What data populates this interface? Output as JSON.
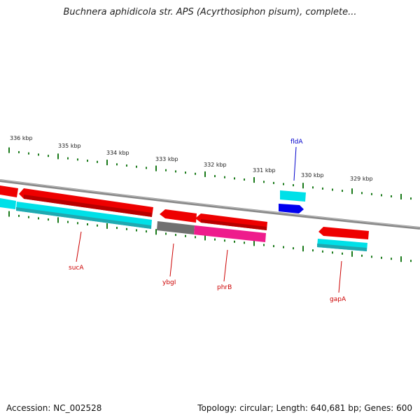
{
  "title": "Buchnera aphidicola str. APS (Acyrthosiphon pisum), complete...",
  "footer": {
    "accession": "Accession: NC_002528",
    "topology": "Topology: circular; Length: 640,681 bp; Genes: 600"
  },
  "colors": {
    "backbone": "#888888",
    "tick": "#1a7a1a",
    "cds": "#ee0000",
    "cds_dark": "#b80000",
    "rna_cyan": "#00e0e8",
    "pseudo_gray": "#707070",
    "pink": "#ee1c8c",
    "blue": "#0000ee",
    "label_red": "#cc0000",
    "label_blue": "#0000cc"
  },
  "scale_labels": [
    "336 kbp",
    "335 kbp",
    "334 kbp",
    "333 kbp",
    "332 kbp",
    "331 kbp",
    "330 kbp",
    "329 kbp"
  ],
  "gene_labels": [
    {
      "text": "sucA",
      "color": "#cc0000"
    },
    {
      "text": "ybgI",
      "color": "#cc0000"
    },
    {
      "text": "phrB",
      "color": "#cc0000"
    },
    {
      "text": "gapA",
      "color": "#cc0000"
    },
    {
      "text": "fldA",
      "color": "#0000cc"
    }
  ]
}
